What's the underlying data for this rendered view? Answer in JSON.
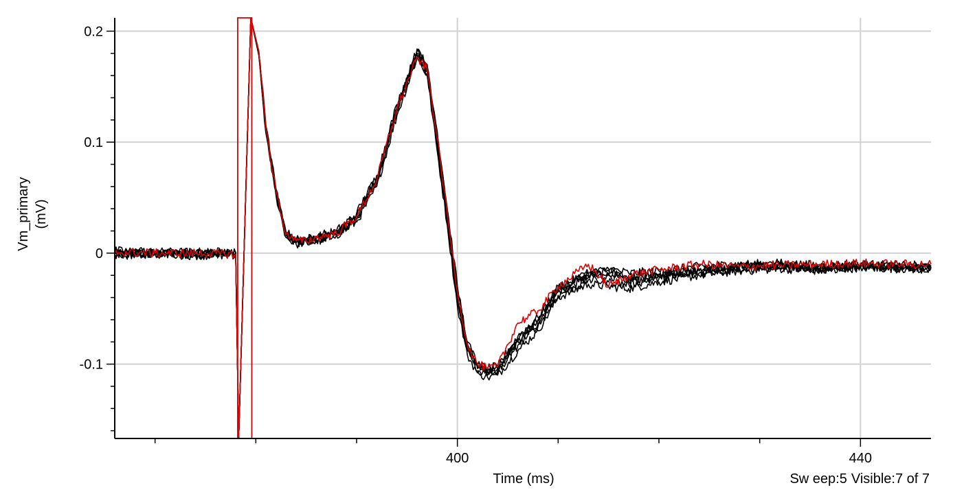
{
  "colors": {
    "background": "#ffffff",
    "grid": "#d2d2d2",
    "axis": "#000000",
    "sweep": "#000000",
    "highlight_sweep": "#e00000"
  },
  "status": {
    "sweep_label": "Sw eep:5",
    "visible_label": "Visible:7 of 7"
  },
  "chart_data": {
    "type": "line",
    "title": "",
    "xlabel": "Time (ms)",
    "ylabel": "Vm_primary",
    "yunit": "(mV)",
    "xlim": [
      366,
      447
    ],
    "ylim": [
      -0.167,
      0.212
    ],
    "x_major_ticks": [
      360,
      400,
      440
    ],
    "x_tick_labels": [
      "400",
      "440"
    ],
    "x_tick_label_values": [
      400,
      440
    ],
    "x_minor_step": 10,
    "y_major_ticks": [
      -0.1,
      0,
      0.1,
      0.2
    ],
    "y_tick_labels": [
      "-0.1",
      "0",
      "0.1",
      "0.2"
    ],
    "y_minor_step": 0.02,
    "grid": true,
    "grid_axes": "major",
    "series_count": 7,
    "highlighted_series_index": 4,
    "stimulus_artifact": {
      "down_x": 378.2,
      "up_x": 379.6,
      "y_low": -0.167,
      "y_high": 0.212
    },
    "series": [
      {
        "color": "#000000",
        "x": [
          366,
          370,
          374,
          378,
          378.3,
          379.5,
          380.3,
          381,
          382,
          383,
          384,
          385,
          386,
          388,
          390,
          392,
          394,
          396,
          397,
          398,
          399,
          400,
          401,
          402,
          403,
          404,
          406,
          408,
          410,
          413,
          415,
          417,
          420,
          424,
          428,
          432,
          436,
          440,
          444,
          447
        ],
        "y": [
          -0.001,
          0.0,
          -0.002,
          -0.001,
          -0.167,
          0.212,
          0.18,
          0.112,
          0.055,
          0.017,
          0.011,
          0.011,
          0.013,
          0.018,
          0.033,
          0.066,
          0.13,
          0.18,
          0.165,
          0.102,
          0.032,
          -0.038,
          -0.085,
          -0.104,
          -0.108,
          -0.106,
          -0.08,
          -0.063,
          -0.035,
          -0.022,
          -0.02,
          -0.025,
          -0.021,
          -0.016,
          -0.013,
          -0.012,
          -0.014,
          -0.012,
          -0.013,
          -0.013
        ]
      },
      {
        "color": "#000000",
        "x": [
          366,
          370,
          374,
          378,
          378.3,
          379.5,
          380.3,
          381,
          382,
          383,
          384,
          385,
          386,
          388,
          390,
          392,
          394,
          396,
          397,
          398,
          399,
          400,
          401,
          402,
          403,
          404,
          406,
          408,
          410,
          413,
          415,
          417,
          420,
          424,
          428,
          432,
          436,
          440,
          444,
          447
        ],
        "y": [
          0.001,
          0.001,
          -0.001,
          0.0,
          -0.167,
          0.212,
          0.178,
          0.108,
          0.052,
          0.014,
          0.008,
          0.01,
          0.01,
          0.016,
          0.028,
          0.06,
          0.124,
          0.176,
          0.16,
          0.092,
          0.025,
          -0.048,
          -0.092,
          -0.108,
          -0.112,
          -0.11,
          -0.088,
          -0.07,
          -0.04,
          -0.028,
          -0.03,
          -0.032,
          -0.026,
          -0.02,
          -0.016,
          -0.014,
          -0.016,
          -0.013,
          -0.014,
          -0.015
        ]
      },
      {
        "color": "#000000",
        "x": [
          366,
          370,
          374,
          378,
          378.3,
          379.5,
          380.3,
          381,
          382,
          383,
          384,
          385,
          386,
          388,
          390,
          392,
          394,
          396,
          397,
          398,
          399,
          400,
          401,
          402,
          403,
          404,
          406,
          408,
          410,
          413,
          415,
          417,
          420,
          424,
          428,
          432,
          436,
          440,
          444,
          447
        ],
        "y": [
          0.002,
          0.001,
          0.001,
          0.001,
          -0.167,
          0.212,
          0.182,
          0.115,
          0.058,
          0.019,
          0.013,
          0.013,
          0.015,
          0.02,
          0.036,
          0.07,
          0.134,
          0.182,
          0.17,
          0.11,
          0.04,
          -0.03,
          -0.08,
          -0.1,
          -0.104,
          -0.102,
          -0.075,
          -0.058,
          -0.03,
          -0.019,
          -0.014,
          -0.018,
          -0.016,
          -0.012,
          -0.01,
          -0.009,
          -0.011,
          -0.01,
          -0.011,
          -0.011
        ]
      },
      {
        "color": "#000000",
        "x": [
          366,
          370,
          374,
          378,
          378.3,
          379.5,
          380.3,
          381,
          382,
          383,
          384,
          385,
          386,
          388,
          390,
          392,
          394,
          396,
          397,
          398,
          399,
          400,
          401,
          402,
          403,
          404,
          406,
          408,
          410,
          413,
          415,
          417,
          420,
          424,
          428,
          432,
          436,
          440,
          444,
          447
        ],
        "y": [
          -0.002,
          -0.001,
          -0.002,
          -0.002,
          -0.167,
          0.212,
          0.179,
          0.11,
          0.054,
          0.016,
          0.01,
          0.012,
          0.012,
          0.017,
          0.031,
          0.064,
          0.128,
          0.178,
          0.162,
          0.096,
          0.028,
          -0.044,
          -0.088,
          -0.106,
          -0.11,
          -0.107,
          -0.083,
          -0.066,
          -0.038,
          -0.024,
          -0.026,
          -0.028,
          -0.023,
          -0.018,
          -0.014,
          -0.013,
          -0.015,
          -0.012,
          -0.013,
          -0.014
        ]
      },
      {
        "color": "#e00000",
        "x": [
          366,
          370,
          374,
          378,
          378.3,
          379.5,
          380.3,
          381,
          382,
          383,
          384,
          385,
          386,
          388,
          390,
          392,
          394,
          396,
          397,
          398,
          399,
          400,
          401,
          402,
          403,
          404,
          406,
          408,
          410,
          413,
          415,
          417,
          420,
          424,
          428,
          432,
          436,
          440,
          444,
          447
        ],
        "y": [
          0.001,
          0.0,
          0.0,
          -0.001,
          -0.167,
          0.212,
          0.181,
          0.113,
          0.056,
          0.017,
          0.011,
          0.011,
          0.014,
          0.018,
          0.033,
          0.066,
          0.13,
          0.176,
          0.166,
          0.104,
          0.035,
          -0.035,
          -0.083,
          -0.1,
          -0.104,
          -0.102,
          -0.063,
          -0.052,
          -0.03,
          -0.01,
          -0.03,
          -0.02,
          -0.015,
          -0.01,
          -0.012,
          -0.011,
          -0.01,
          -0.009,
          -0.01,
          -0.01
        ]
      },
      {
        "color": "#000000",
        "x": [
          366,
          370,
          374,
          378,
          378.3,
          379.5,
          380.3,
          381,
          382,
          383,
          384,
          385,
          386,
          388,
          390,
          392,
          394,
          396,
          397,
          398,
          399,
          400,
          401,
          402,
          403,
          404,
          406,
          408,
          410,
          413,
          415,
          417,
          420,
          424,
          428,
          432,
          436,
          440,
          444,
          447
        ],
        "y": [
          0.0,
          -0.001,
          0.0,
          -0.001,
          -0.167,
          0.212,
          0.18,
          0.111,
          0.055,
          0.016,
          0.009,
          0.011,
          0.012,
          0.017,
          0.031,
          0.065,
          0.129,
          0.179,
          0.164,
          0.099,
          0.03,
          -0.041,
          -0.086,
          -0.103,
          -0.107,
          -0.104,
          -0.078,
          -0.06,
          -0.033,
          -0.018,
          -0.016,
          -0.022,
          -0.019,
          -0.015,
          -0.012,
          -0.011,
          -0.013,
          -0.011,
          -0.012,
          -0.012
        ]
      },
      {
        "color": "#000000",
        "x": [
          366,
          370,
          374,
          378,
          378.3,
          379.5,
          380.3,
          381,
          382,
          383,
          384,
          385,
          386,
          388,
          390,
          392,
          394,
          396,
          397,
          398,
          399,
          400,
          401,
          402,
          403,
          404,
          406,
          408,
          410,
          413,
          415,
          417,
          420,
          424,
          428,
          432,
          436,
          440,
          444,
          447
        ],
        "y": [
          -0.001,
          0.0,
          -0.001,
          0.0,
          -0.167,
          0.212,
          0.181,
          0.114,
          0.057,
          0.018,
          0.012,
          0.012,
          0.014,
          0.019,
          0.034,
          0.068,
          0.132,
          0.184,
          0.168,
          0.106,
          0.037,
          -0.034,
          -0.082,
          -0.101,
          -0.106,
          -0.104,
          -0.079,
          -0.061,
          -0.034,
          -0.021,
          -0.018,
          -0.024,
          -0.02,
          -0.015,
          -0.012,
          -0.012,
          -0.013,
          -0.011,
          -0.012,
          -0.013
        ]
      }
    ]
  }
}
